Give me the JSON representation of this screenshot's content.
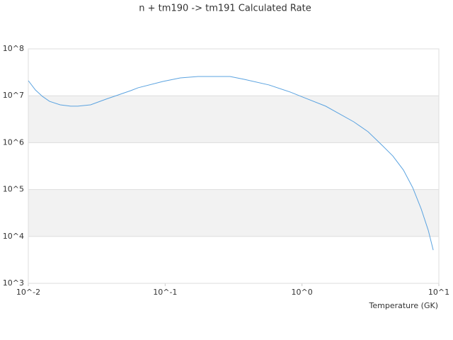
{
  "chart_data": {
    "type": "line",
    "title": "n + tm190 -> tm191 Calculated Rate",
    "xlabel": "Temperature (GK)",
    "xscale": "log",
    "yscale": "log",
    "color": "#5ba3e0",
    "x": [
      0.01,
      0.01127,
      0.01268,
      0.01429,
      0.0171,
      0.0204,
      0.023,
      0.0285,
      0.0371,
      0.0562,
      0.0634,
      0.0962,
      0.129,
      0.174,
      0.298,
      0.378,
      0.574,
      0.82,
      1.04,
      1.49,
      2.39,
      3.04,
      3.85,
      4.61,
      5.51,
      6.44,
      7.43,
      8.37,
      9.1
    ],
    "values": [
      21000000,
      13300000,
      9700000,
      7600000,
      6400000,
      6000000,
      6000000,
      6400000,
      8500000,
      12900000,
      14800000,
      20200000,
      24000000,
      25800000,
      25800000,
      22400000,
      17000000,
      12000000,
      9100000,
      6000000,
      2780000,
      1710000,
      880000,
      520000,
      261000,
      110000,
      38600,
      13500,
      5100
    ],
    "xlim": [
      0.01,
      10
    ],
    "xticks": [
      {
        "value": 0.01,
        "label": "10^-2"
      },
      {
        "value": 0.1,
        "label": "10^-1"
      },
      {
        "value": 1,
        "label": "10^0"
      },
      {
        "value": 10,
        "label": "10^1"
      }
    ],
    "ylim": [
      1000,
      100000000
    ],
    "yticks": [
      {
        "value": 1000,
        "label": "10^3"
      },
      {
        "value": 10000,
        "label": "10^4"
      },
      {
        "value": 100000,
        "label": "10^5"
      },
      {
        "value": 1000000,
        "label": "10^6"
      },
      {
        "value": 10000000,
        "label": "10^7"
      },
      {
        "value": 100000000,
        "label": "10^8"
      }
    ],
    "grid": true
  }
}
